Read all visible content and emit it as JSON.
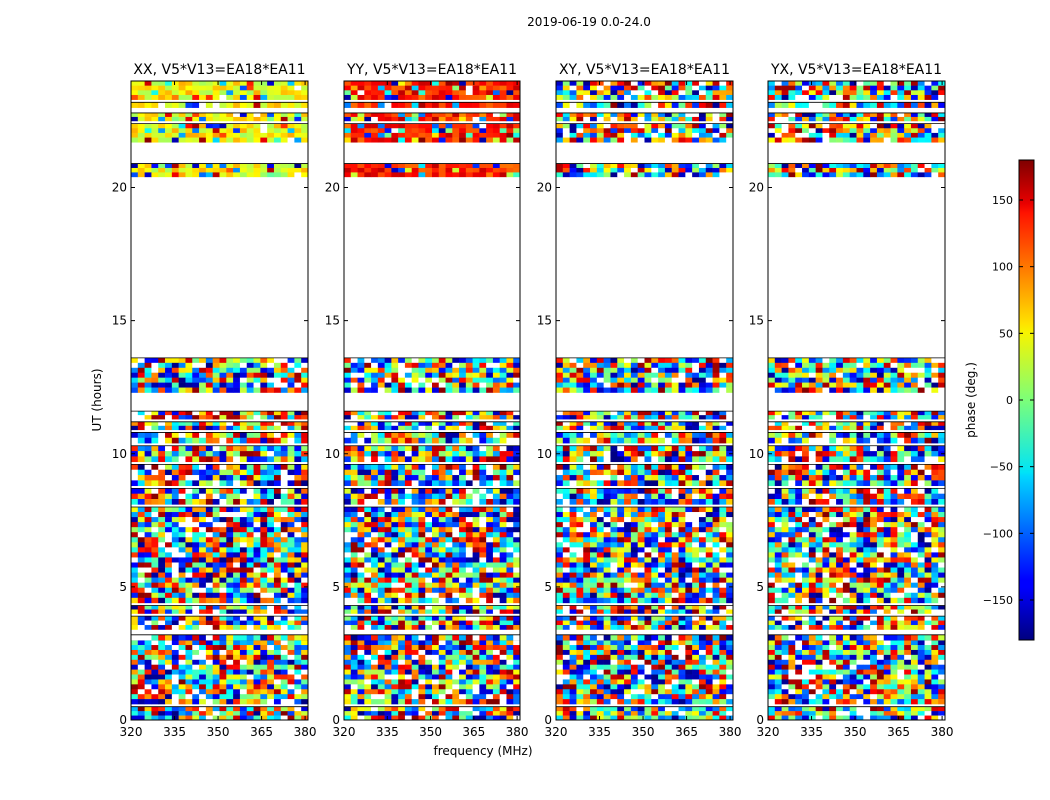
{
  "chart_data": {
    "type": "heatmap",
    "suptitle": "2019-06-19 0.0-24.0",
    "xlabel": "frequency (MHz)",
    "ylabel": "UT (hours)",
    "xlim": [
      320,
      381
    ],
    "ylim": [
      0,
      24
    ],
    "x_ticks": [
      320,
      335,
      350,
      365,
      380
    ],
    "y_ticks": [
      0,
      5,
      10,
      15,
      20
    ],
    "panels": [
      {
        "title": "XX, V5*V13=EA18*EA11",
        "pol": "XX"
      },
      {
        "title": "YY, V5*V13=EA18*EA11",
        "pol": "YY"
      },
      {
        "title": "XY, V5*V13=EA18*EA11",
        "pol": "XY"
      },
      {
        "title": "YX, V5*V13=EA18*EA11",
        "pol": "YX"
      }
    ],
    "colorbar": {
      "label": "phase (deg.)",
      "range": [
        -180,
        180
      ],
      "ticks": [
        150,
        100,
        50,
        0,
        -50,
        -100,
        -150
      ],
      "tick_labels": [
        "150",
        "100",
        "50",
        "0",
        "−50",
        "−100",
        "−150"
      ],
      "colormap": "jet"
    },
    "data_gaps_ut_hours": [
      [
        13.6,
        20.4
      ],
      [
        20.9,
        21.7
      ],
      [
        12.3,
        11.7
      ]
    ],
    "data_blocks_ut_hours": [
      [
        0,
        0.5
      ],
      [
        0.6,
        3.0
      ],
      [
        3.0,
        3.2
      ],
      [
        3.4,
        3.9
      ],
      [
        4.0,
        4.3
      ],
      [
        4.4,
        8.0
      ],
      [
        8.1,
        8.7
      ],
      [
        8.8,
        9.6
      ],
      [
        9.7,
        10.3
      ],
      [
        10.4,
        10.8
      ],
      [
        10.9,
        11.2
      ],
      [
        11.3,
        11.6
      ],
      [
        12.3,
        13.6
      ],
      [
        20.4,
        20.9
      ],
      [
        21.7,
        22.4
      ],
      [
        22.5,
        22.8
      ],
      [
        23.0,
        23.2
      ],
      [
        23.3,
        24.0
      ]
    ]
  }
}
